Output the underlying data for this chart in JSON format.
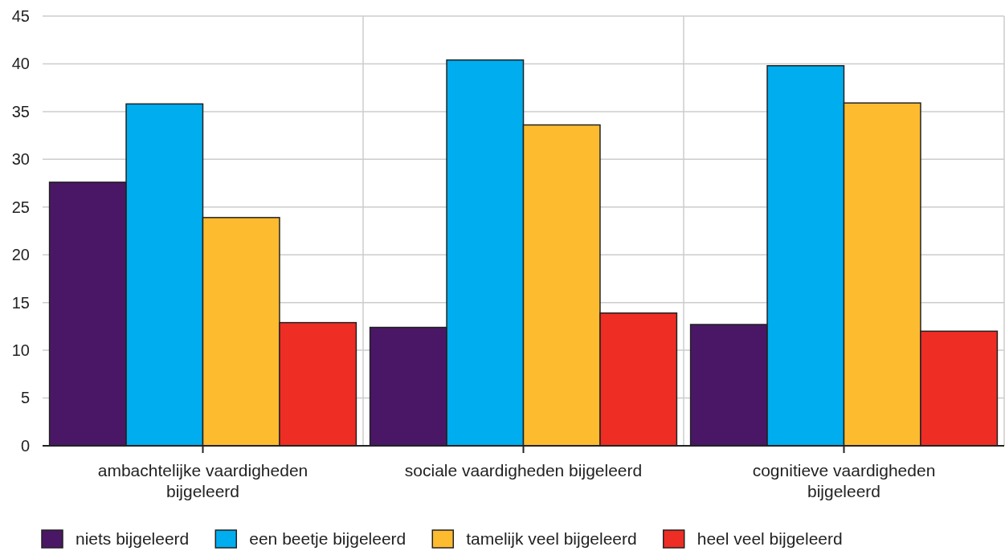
{
  "chart_data": {
    "type": "bar",
    "categories": [
      "ambachtelijke vaardigheden bijgeleerd",
      "sociale vaardigheden bijgeleerd",
      "cognitieve vaardigheden bijgeleerd"
    ],
    "series": [
      {
        "name": "niets bijgeleerd",
        "color": "#4a1766",
        "values": [
          27.6,
          12.4,
          12.7
        ]
      },
      {
        "name": "een beetje bijgeleerd",
        "color": "#00adee",
        "values": [
          35.8,
          40.4,
          39.8
        ]
      },
      {
        "name": "tamelijk veel bijgeleerd",
        "color": "#fdbb30",
        "values": [
          23.9,
          33.6,
          35.9
        ]
      },
      {
        "name": "heel veel bijgeleerd",
        "color": "#ee2d24",
        "values": [
          12.9,
          13.9,
          12.0
        ]
      }
    ],
    "ylim": [
      0,
      45
    ],
    "yticks": [
      0,
      5,
      10,
      15,
      20,
      25,
      30,
      35,
      40,
      45
    ],
    "grid": "y",
    "legend": "bottom"
  }
}
